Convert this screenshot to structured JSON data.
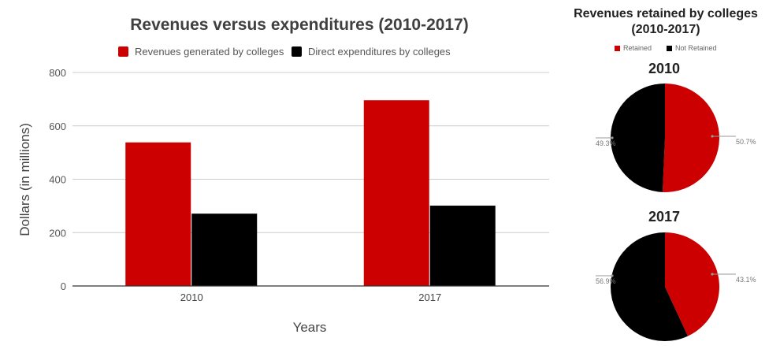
{
  "colors": {
    "revenue": "#cc0000",
    "expenditure": "#000000",
    "grid": "#cccccc",
    "axis": "#333333"
  },
  "chart_data": [
    {
      "type": "bar",
      "title": "Revenues versus expenditures (2010-2017)",
      "categories": [
        "2010",
        "2017"
      ],
      "series": [
        {
          "name": "Revenues generated by colleges",
          "values": [
            538,
            696
          ]
        },
        {
          "name": "Direct expenditures by colleges",
          "values": [
            271,
            301
          ]
        }
      ],
      "xlabel": "Years",
      "ylabel": "Dollars (in millions)",
      "ylim": [
        0,
        800
      ],
      "yticks": [
        0,
        200,
        400,
        600,
        800
      ],
      "grid": true,
      "legend": "top"
    },
    {
      "type": "pie",
      "title": "Revenues retained by colleges (2010-2017)",
      "legend_labels": [
        "Retained",
        "Not Retained"
      ],
      "legend": "top",
      "pies": [
        {
          "title": "2010",
          "slices": [
            {
              "label": "Retained",
              "value": 50.7,
              "text": "50.7%"
            },
            {
              "label": "Not Retained",
              "value": 49.3,
              "text": "49.3%"
            }
          ]
        },
        {
          "title": "2017",
          "slices": [
            {
              "label": "Retained",
              "value": 43.1,
              "text": "43.1%"
            },
            {
              "label": "Not Retained",
              "value": 56.9,
              "text": "56.9%"
            }
          ]
        }
      ]
    }
  ]
}
